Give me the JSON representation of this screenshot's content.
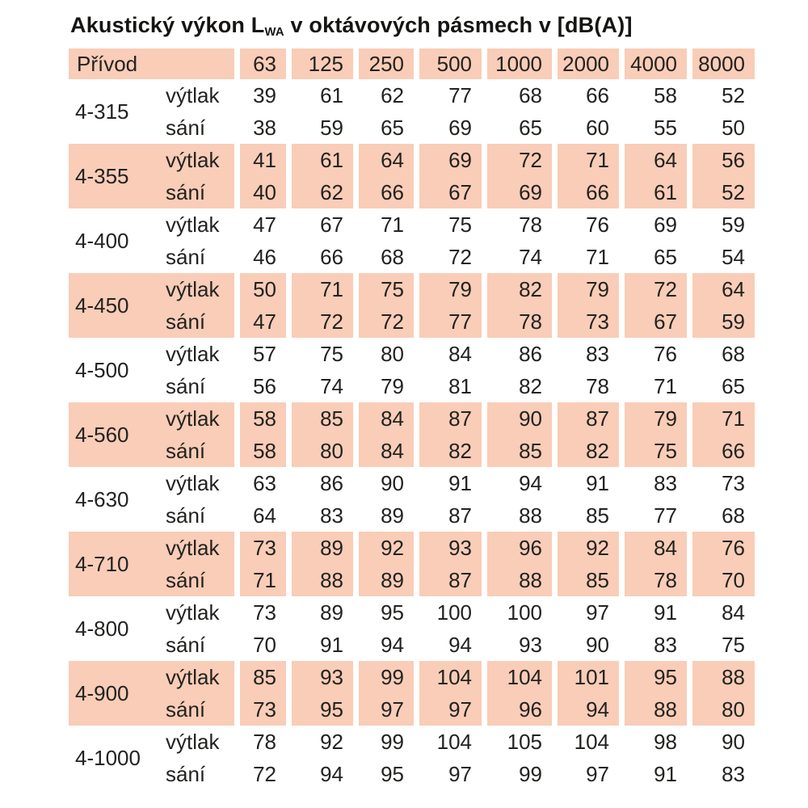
{
  "title": {
    "prefix": "Akustický výkon L",
    "subscript": "WA",
    "suffix": " v oktávových pásmech v [dB(A)]"
  },
  "colors": {
    "band_background": "#f9cdb7",
    "text": "#232220"
  },
  "table": {
    "header": {
      "label": "Přívod",
      "frequencies": [
        "63",
        "125",
        "250",
        "500",
        "1000",
        "2000",
        "4000",
        "8000"
      ]
    },
    "row_labels": {
      "discharge": "výtlak",
      "suction": "sání"
    },
    "groups": [
      {
        "size": "4-315",
        "shaded": false,
        "vytlak": [
          39,
          61,
          62,
          77,
          68,
          66,
          58,
          52
        ],
        "sani": [
          38,
          59,
          65,
          69,
          65,
          60,
          55,
          50
        ]
      },
      {
        "size": "4-355",
        "shaded": true,
        "vytlak": [
          41,
          61,
          64,
          69,
          72,
          71,
          64,
          56
        ],
        "sani": [
          40,
          62,
          66,
          67,
          69,
          66,
          61,
          52
        ]
      },
      {
        "size": "4-400",
        "shaded": false,
        "vytlak": [
          47,
          67,
          71,
          75,
          78,
          76,
          69,
          59
        ],
        "sani": [
          46,
          66,
          68,
          72,
          74,
          71,
          65,
          54
        ]
      },
      {
        "size": "4-450",
        "shaded": true,
        "vytlak": [
          50,
          71,
          75,
          79,
          82,
          79,
          72,
          64
        ],
        "sani": [
          47,
          72,
          72,
          77,
          78,
          73,
          67,
          59
        ]
      },
      {
        "size": "4-500",
        "shaded": false,
        "vytlak": [
          57,
          75,
          80,
          84,
          86,
          83,
          76,
          68
        ],
        "sani": [
          56,
          74,
          79,
          81,
          82,
          78,
          71,
          65
        ]
      },
      {
        "size": "4-560",
        "shaded": true,
        "vytlak": [
          58,
          85,
          84,
          87,
          90,
          87,
          79,
          71
        ],
        "sani": [
          58,
          80,
          84,
          82,
          85,
          82,
          75,
          66
        ]
      },
      {
        "size": "4-630",
        "shaded": false,
        "vytlak": [
          63,
          86,
          90,
          91,
          94,
          91,
          83,
          73
        ],
        "sani": [
          64,
          83,
          89,
          87,
          88,
          85,
          77,
          68
        ]
      },
      {
        "size": "4-710",
        "shaded": true,
        "vytlak": [
          73,
          89,
          92,
          93,
          96,
          92,
          84,
          76
        ],
        "sani": [
          71,
          88,
          89,
          87,
          88,
          85,
          78,
          70
        ]
      },
      {
        "size": "4-800",
        "shaded": false,
        "vytlak": [
          73,
          89,
          95,
          100,
          100,
          97,
          91,
          84
        ],
        "sani": [
          70,
          91,
          94,
          94,
          93,
          90,
          83,
          75
        ]
      },
      {
        "size": "4-900",
        "shaded": true,
        "vytlak": [
          85,
          93,
          99,
          104,
          104,
          101,
          95,
          88
        ],
        "sani": [
          73,
          95,
          97,
          97,
          96,
          94,
          88,
          80
        ]
      },
      {
        "size": "4-1000",
        "shaded": false,
        "vytlak": [
          78,
          92,
          99,
          104,
          105,
          104,
          98,
          90
        ],
        "sani": [
          72,
          94,
          95,
          97,
          99,
          97,
          91,
          83
        ]
      }
    ]
  }
}
